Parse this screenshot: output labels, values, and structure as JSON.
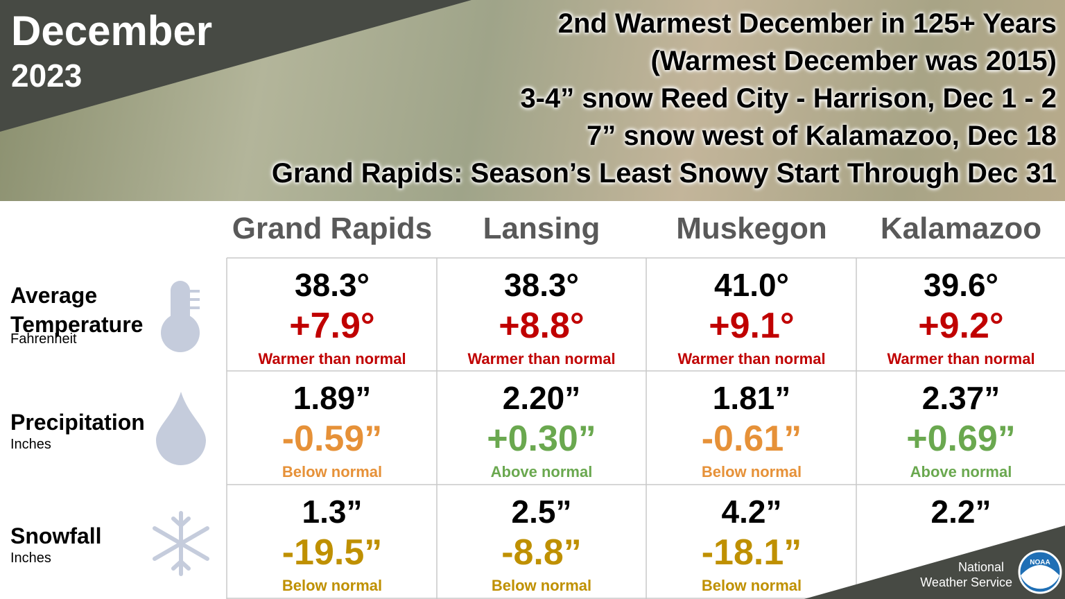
{
  "header": {
    "month": "December",
    "year": "2023"
  },
  "headlines": [
    "2nd Warmest December in 125+ Years",
    "(Warmest December was 2015)",
    "3-4” snow Reed City - Harrison, Dec 1 - 2",
    "7” snow west of Kalamazoo, Dec 18",
    "Grand Rapids: Season’s Least Snowy Start Through Dec 31"
  ],
  "table": {
    "columns": [
      "Grand Rapids",
      "Lansing",
      "Muskegon",
      "Kalamazoo"
    ],
    "rows": [
      {
        "label": "Average Temperature",
        "unit": "Fahrenheit",
        "cells": [
          {
            "value": "38.3°",
            "departure": "+7.9°",
            "note": "Warmer than normal",
            "color": "#c00000"
          },
          {
            "value": "38.3°",
            "departure": "+8.8°",
            "note": "Warmer than normal",
            "color": "#c00000"
          },
          {
            "value": "41.0°",
            "departure": "+9.1°",
            "note": "Warmer than normal",
            "color": "#c00000"
          },
          {
            "value": "39.6°",
            "departure": "+9.2°",
            "note": "Warmer than normal",
            "color": "#c00000"
          }
        ]
      },
      {
        "label": "Precipitation",
        "unit": "Inches",
        "cells": [
          {
            "value": "1.89”",
            "departure": "-0.59”",
            "note": "Below normal",
            "color": "#e69138"
          },
          {
            "value": "2.20”",
            "departure": "+0.30”",
            "note": "Above normal",
            "color": "#6aa84f"
          },
          {
            "value": "1.81”",
            "departure": "-0.61”",
            "note": "Below normal",
            "color": "#e69138"
          },
          {
            "value": "2.37”",
            "departure": "+0.69”",
            "note": "Above normal",
            "color": "#6aa84f"
          }
        ]
      },
      {
        "label": "Snowfall",
        "unit": "Inches",
        "cells": [
          {
            "value": "1.3”",
            "departure": "-19.5”",
            "note": "Below normal",
            "color": "#bf9000"
          },
          {
            "value": "2.5”",
            "departure": "-8.8”",
            "note": "Below normal",
            "color": "#bf9000"
          },
          {
            "value": "4.2”",
            "departure": "-18.1”",
            "note": "Below normal",
            "color": "#bf9000"
          },
          {
            "value": "2.2”"
          }
        ]
      }
    ]
  },
  "footer": {
    "org_line1": "National",
    "org_line2": "Weather Service",
    "logo": "NOAA"
  }
}
